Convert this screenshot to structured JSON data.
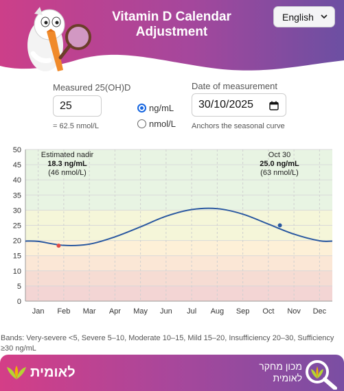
{
  "header": {
    "title_line1": "Vitamin D Calendar",
    "title_line2": "Adjustment",
    "language": "English",
    "colors": {
      "left": "#cc3f89",
      "right": "#6c4fa2"
    }
  },
  "form": {
    "measured_label": "Measured 25(OH)D",
    "measured_value": "25",
    "converted": "= 62.5 nmol/L",
    "unit_options": [
      {
        "label": "ng/mL",
        "selected": true
      },
      {
        "label": "nmol/L",
        "selected": false
      }
    ],
    "date_label": "Date of measurement",
    "date_value": "30/10/2025",
    "date_hint": "Anchors the seasonal curve"
  },
  "chart_data": {
    "type": "line",
    "ylim": [
      0,
      50
    ],
    "yticks": [
      "0",
      "5",
      "10",
      "15",
      "20",
      "25",
      "30",
      "35",
      "40",
      "45",
      "50"
    ],
    "categories": [
      "Jan",
      "Feb",
      "Mar",
      "Apr",
      "May",
      "Jun",
      "Jul",
      "Aug",
      "Sep",
      "Oct",
      "Nov",
      "Dec"
    ],
    "series": [
      {
        "values": [
          19.7,
          18.4,
          18.8,
          21.2,
          24.5,
          28.0,
          30.2,
          30.5,
          28.7,
          25.4,
          22.1,
          19.9
        ]
      }
    ],
    "bands": [
      {
        "from": 0,
        "to": 5,
        "color": "#f3d5d4"
      },
      {
        "from": 5,
        "to": 10,
        "color": "#f6dcd3"
      },
      {
        "from": 10,
        "to": 15,
        "color": "#fbe7d6"
      },
      {
        "from": 15,
        "to": 20,
        "color": "#fdf0d7"
      },
      {
        "from": 20,
        "to": 30,
        "color": "#f5f6d9"
      },
      {
        "from": 30,
        "to": 50,
        "color": "#e8f4e3"
      }
    ],
    "annotations": [
      {
        "label": "Estimated nadir",
        "value_text": "18.3 ng/mL",
        "sub_text": "(46 nmol/L)",
        "month_index": 1.3,
        "y": 18.3,
        "color": "#e04848"
      },
      {
        "label": "Oct 30",
        "value_text": "25.0 ng/mL",
        "sub_text": "(63 nmol/L)",
        "month_index": 9.95,
        "y": 25.0,
        "color": "#2a58a0"
      }
    ],
    "line_color": "#2a58a0"
  },
  "bands_note": "Bands: Very-severe <5, Severe 5–10, Moderate 10–15, Mild 15–20, Insufficiency 20–30, Sufficiency ≥30 ng/mL",
  "footer": {
    "left_logo": "לאומית",
    "right_line1": "מכון מחקר",
    "right_line2": "לאומית"
  }
}
